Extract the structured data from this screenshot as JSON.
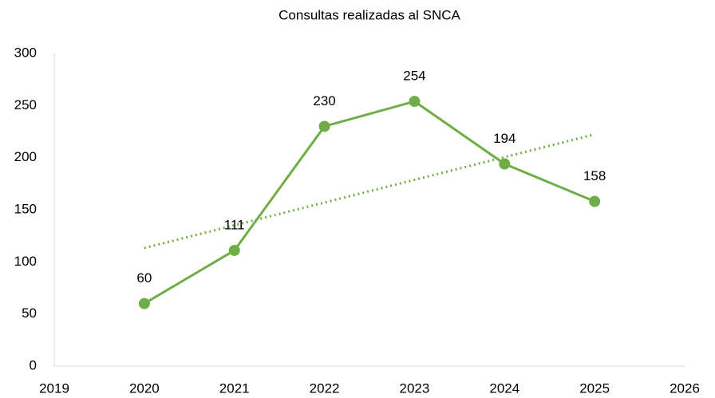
{
  "chart_data": {
    "type": "line",
    "title": "Consultas realizadas al SNCA",
    "x": [
      2020,
      2021,
      2022,
      2023,
      2024,
      2025
    ],
    "series": [
      {
        "color": "#70ad47",
        "values": [
          60,
          111,
          230,
          254,
          194,
          158
        ]
      }
    ],
    "trendline": {
      "x": [
        2020,
        2025
      ],
      "values": [
        113.3,
        222.3
      ],
      "color": "#70ad47"
    },
    "xlim": [
      2019,
      2026
    ],
    "xticks": [
      2019,
      2020,
      2021,
      2022,
      2023,
      2024,
      2025,
      2026
    ],
    "ylim": [
      0,
      300
    ],
    "yticks": [
      0,
      50,
      100,
      150,
      200,
      250,
      300
    ],
    "grid": false
  }
}
